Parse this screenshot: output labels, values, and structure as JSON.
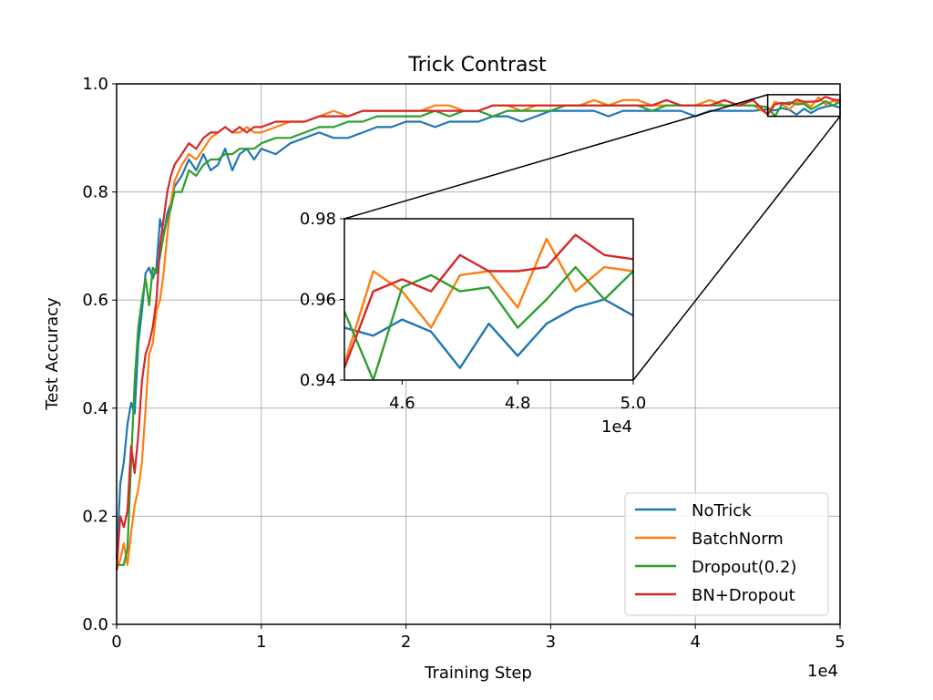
{
  "chart_data": {
    "type": "line",
    "title": "Trick Contrast",
    "xlabel": "Training Step",
    "ylabel": "Test Accuracy",
    "x_multiplier_label": "1e4",
    "xlim": [
      0,
      50000
    ],
    "ylim": [
      0.0,
      1.0
    ],
    "xticks": [
      0,
      10000,
      20000,
      30000,
      40000,
      50000
    ],
    "xtick_labels": [
      "0",
      "1",
      "2",
      "3",
      "4",
      "5"
    ],
    "yticks": [
      0.0,
      0.2,
      0.4,
      0.6,
      0.8,
      1.0
    ],
    "ytick_labels": [
      "0.0",
      "0.2",
      "0.4",
      "0.6",
      "0.8",
      "1.0"
    ],
    "grid": true,
    "legend_placement": "lower-right",
    "series": [
      {
        "name": "NoTrick",
        "color": "#1f77b4",
        "x": [
          0,
          250,
          500,
          750,
          1000,
          1250,
          1500,
          1750,
          2000,
          2250,
          2500,
          2750,
          3000,
          3250,
          3500,
          3750,
          4000,
          4500,
          5000,
          5500,
          6000,
          6500,
          7000,
          7500,
          8000,
          8500,
          9000,
          9500,
          10000,
          11000,
          12000,
          13000,
          14000,
          15000,
          16000,
          17000,
          18000,
          19000,
          20000,
          21000,
          22000,
          23000,
          24000,
          25000,
          26000,
          27000,
          28000,
          29000,
          30000,
          31000,
          32000,
          33000,
          34000,
          35000,
          36000,
          37000,
          38000,
          39000,
          40000,
          41000,
          42000,
          43000,
          44000,
          45000,
          45500,
          46000,
          46500,
          47000,
          47500,
          48000,
          48500,
          49000,
          49500,
          50000
        ],
        "y": [
          0.12,
          0.26,
          0.3,
          0.37,
          0.41,
          0.39,
          0.52,
          0.58,
          0.65,
          0.66,
          0.64,
          0.66,
          0.75,
          0.72,
          0.76,
          0.78,
          0.81,
          0.83,
          0.86,
          0.84,
          0.87,
          0.84,
          0.85,
          0.88,
          0.84,
          0.87,
          0.88,
          0.86,
          0.88,
          0.87,
          0.89,
          0.9,
          0.91,
          0.9,
          0.9,
          0.91,
          0.92,
          0.92,
          0.93,
          0.93,
          0.92,
          0.93,
          0.93,
          0.93,
          0.94,
          0.94,
          0.93,
          0.94,
          0.95,
          0.95,
          0.95,
          0.95,
          0.94,
          0.95,
          0.95,
          0.95,
          0.95,
          0.95,
          0.94,
          0.95,
          0.95,
          0.95,
          0.95,
          0.953,
          0.951,
          0.955,
          0.952,
          0.943,
          0.954,
          0.946,
          0.954,
          0.958,
          0.96,
          0.956
        ]
      },
      {
        "name": "BatchNorm",
        "color": "#ff7f0e",
        "x": [
          0,
          250,
          500,
          750,
          1000,
          1250,
          1500,
          1750,
          2000,
          2250,
          2500,
          2750,
          3000,
          3250,
          3500,
          3750,
          4000,
          4500,
          5000,
          5500,
          6000,
          6500,
          7000,
          7500,
          8000,
          8500,
          9000,
          9500,
          10000,
          11000,
          12000,
          13000,
          14000,
          15000,
          16000,
          17000,
          18000,
          19000,
          20000,
          21000,
          22000,
          23000,
          24000,
          25000,
          26000,
          27000,
          28000,
          29000,
          30000,
          31000,
          32000,
          33000,
          34000,
          35000,
          36000,
          37000,
          38000,
          39000,
          40000,
          41000,
          42000,
          43000,
          44000,
          45000,
          45500,
          46000,
          46500,
          47000,
          47500,
          48000,
          48500,
          49000,
          49500,
          50000
        ],
        "y": [
          0.1,
          0.12,
          0.15,
          0.11,
          0.17,
          0.22,
          0.25,
          0.3,
          0.4,
          0.5,
          0.52,
          0.58,
          0.6,
          0.65,
          0.72,
          0.78,
          0.82,
          0.85,
          0.87,
          0.86,
          0.88,
          0.9,
          0.91,
          0.92,
          0.91,
          0.91,
          0.92,
          0.91,
          0.91,
          0.92,
          0.93,
          0.93,
          0.94,
          0.95,
          0.94,
          0.95,
          0.95,
          0.95,
          0.95,
          0.95,
          0.96,
          0.96,
          0.95,
          0.95,
          0.96,
          0.96,
          0.95,
          0.96,
          0.96,
          0.96,
          0.96,
          0.97,
          0.96,
          0.97,
          0.97,
          0.96,
          0.96,
          0.96,
          0.96,
          0.97,
          0.96,
          0.96,
          0.96,
          0.944,
          0.967,
          0.962,
          0.953,
          0.966,
          0.967,
          0.958,
          0.975,
          0.962,
          0.968,
          0.967
        ]
      },
      {
        "name": "Dropout(0.2)",
        "color": "#2ca02c",
        "x": [
          0,
          250,
          500,
          750,
          1000,
          1250,
          1500,
          1750,
          2000,
          2250,
          2500,
          2750,
          3000,
          3250,
          3500,
          3750,
          4000,
          4500,
          5000,
          5500,
          6000,
          6500,
          7000,
          7500,
          8000,
          8500,
          9000,
          9500,
          10000,
          11000,
          12000,
          13000,
          14000,
          15000,
          16000,
          17000,
          18000,
          19000,
          20000,
          21000,
          22000,
          23000,
          24000,
          25000,
          26000,
          27000,
          28000,
          29000,
          30000,
          31000,
          32000,
          33000,
          34000,
          35000,
          36000,
          37000,
          38000,
          39000,
          40000,
          41000,
          42000,
          43000,
          44000,
          45000,
          45500,
          46000,
          46500,
          47000,
          47500,
          48000,
          48500,
          49000,
          49500,
          50000
        ],
        "y": [
          0.11,
          0.11,
          0.11,
          0.14,
          0.3,
          0.45,
          0.55,
          0.6,
          0.64,
          0.59,
          0.66,
          0.65,
          0.68,
          0.72,
          0.75,
          0.77,
          0.8,
          0.8,
          0.84,
          0.83,
          0.85,
          0.86,
          0.86,
          0.87,
          0.87,
          0.88,
          0.88,
          0.88,
          0.89,
          0.9,
          0.9,
          0.91,
          0.92,
          0.92,
          0.93,
          0.93,
          0.94,
          0.94,
          0.94,
          0.94,
          0.95,
          0.94,
          0.95,
          0.95,
          0.94,
          0.95,
          0.95,
          0.95,
          0.95,
          0.96,
          0.96,
          0.96,
          0.96,
          0.96,
          0.96,
          0.95,
          0.96,
          0.96,
          0.96,
          0.96,
          0.96,
          0.96,
          0.96,
          0.957,
          0.94,
          0.963,
          0.966,
          0.962,
          0.963,
          0.953,
          0.96,
          0.968,
          0.96,
          0.967
        ]
      },
      {
        "name": "BN+Dropout",
        "color": "#d62728",
        "x": [
          0,
          250,
          500,
          750,
          1000,
          1250,
          1500,
          1750,
          2000,
          2250,
          2500,
          2750,
          3000,
          3250,
          3500,
          3750,
          4000,
          4500,
          5000,
          5500,
          6000,
          6500,
          7000,
          7500,
          8000,
          8500,
          9000,
          9500,
          10000,
          11000,
          12000,
          13000,
          14000,
          15000,
          16000,
          17000,
          18000,
          19000,
          20000,
          21000,
          22000,
          23000,
          24000,
          25000,
          26000,
          27000,
          28000,
          29000,
          30000,
          31000,
          32000,
          33000,
          34000,
          35000,
          36000,
          37000,
          38000,
          39000,
          40000,
          41000,
          42000,
          43000,
          44000,
          45000,
          45500,
          46000,
          46500,
          47000,
          47500,
          48000,
          48500,
          49000,
          49500,
          50000
        ],
        "y": [
          0.1,
          0.2,
          0.18,
          0.21,
          0.33,
          0.28,
          0.35,
          0.45,
          0.5,
          0.52,
          0.55,
          0.6,
          0.7,
          0.75,
          0.8,
          0.83,
          0.85,
          0.87,
          0.89,
          0.88,
          0.9,
          0.91,
          0.91,
          0.92,
          0.91,
          0.92,
          0.91,
          0.92,
          0.92,
          0.93,
          0.93,
          0.93,
          0.94,
          0.94,
          0.94,
          0.95,
          0.95,
          0.95,
          0.95,
          0.95,
          0.95,
          0.95,
          0.95,
          0.95,
          0.96,
          0.96,
          0.96,
          0.96,
          0.96,
          0.96,
          0.96,
          0.96,
          0.96,
          0.96,
          0.96,
          0.96,
          0.97,
          0.96,
          0.96,
          0.96,
          0.97,
          0.96,
          0.97,
          0.943,
          0.962,
          0.965,
          0.962,
          0.971,
          0.967,
          0.967,
          0.968,
          0.976,
          0.971,
          0.97
        ]
      }
    ],
    "inset": {
      "xlim": [
        45000,
        50000
      ],
      "ylim": [
        0.94,
        0.98
      ],
      "xticks": [
        46000,
        48000,
        50000
      ],
      "xtick_labels": [
        "4.6",
        "4.8",
        "5.0"
      ],
      "yticks": [
        0.94,
        0.96,
        0.98
      ],
      "ytick_labels": [
        "0.94",
        "0.96",
        "0.98"
      ],
      "x_multiplier_label": "1e4",
      "grid": false
    }
  }
}
